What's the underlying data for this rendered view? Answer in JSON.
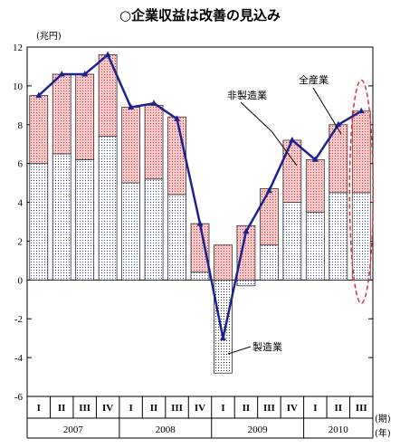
{
  "chart_data": {
    "type": "bar",
    "title": "○企業収益は改善の見込み",
    "y_unit": "(兆円)",
    "x_unit_quarter": "(期)",
    "x_unit_year": "(年)",
    "ylim": [
      -6,
      12
    ],
    "y_ticks": [
      -6,
      -4,
      -2,
      0,
      2,
      4,
      6,
      8,
      10,
      12
    ],
    "categories": [
      {
        "q": "I",
        "year": "2007"
      },
      {
        "q": "II",
        "year": "2007"
      },
      {
        "q": "III",
        "year": "2007"
      },
      {
        "q": "IV",
        "year": "2007"
      },
      {
        "q": "I",
        "year": "2008"
      },
      {
        "q": "II",
        "year": "2008"
      },
      {
        "q": "III",
        "year": "2008"
      },
      {
        "q": "IV",
        "year": "2008"
      },
      {
        "q": "I",
        "year": "2009"
      },
      {
        "q": "II",
        "year": "2009"
      },
      {
        "q": "III",
        "year": "2009"
      },
      {
        "q": "IV",
        "year": "2009"
      },
      {
        "q": "I",
        "year": "2010"
      },
      {
        "q": "II",
        "year": "2010"
      },
      {
        "q": "III",
        "year": "2010"
      }
    ],
    "years": [
      "2007",
      "2008",
      "2009",
      "2010"
    ],
    "series": [
      {
        "name": "製造業",
        "kind": "stacked-bar",
        "color": "#3a4bb0",
        "values": [
          6.0,
          6.5,
          6.2,
          7.4,
          5.0,
          5.2,
          4.4,
          0.4,
          -4.8,
          -0.3,
          1.8,
          4.0,
          3.5,
          4.5,
          4.5
        ]
      },
      {
        "name": "非製造業",
        "kind": "stacked-bar",
        "color": "#e0303a",
        "values": [
          3.5,
          4.1,
          4.4,
          4.2,
          3.9,
          3.8,
          4.0,
          2.5,
          1.8,
          2.8,
          2.9,
          3.2,
          2.7,
          3.5,
          4.2
        ]
      },
      {
        "name": "全産業",
        "kind": "line",
        "color": "#1c2290",
        "values": [
          9.5,
          10.6,
          10.6,
          11.6,
          8.9,
          9.1,
          8.3,
          2.9,
          -3.0,
          2.5,
          4.6,
          7.2,
          6.2,
          8.0,
          8.7
        ]
      }
    ],
    "highlight": {
      "category_index": 14,
      "style": "dashed-ellipse",
      "color": "#e0303a"
    },
    "annotations": [
      "全産業",
      "非製造業",
      "製造業"
    ],
    "grid": false
  }
}
